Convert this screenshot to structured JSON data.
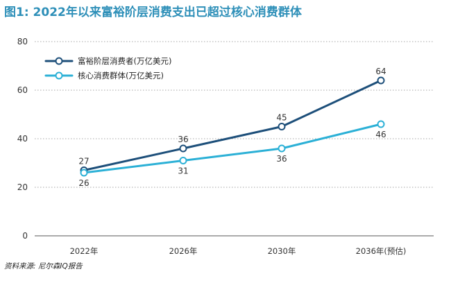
{
  "title": "图1: 2022年以来富裕阶层消费支出已超过核心消费群体",
  "source": "资料来源: 尼尔森IQ报告",
  "chart_data": {
    "type": "line",
    "title": "图1: 2022年以来富裕阶层消费支出已超过核心消费群体",
    "categories": [
      "2022年",
      "2026年",
      "2030年",
      "2036年(预估)"
    ],
    "ylim": [
      0,
      80
    ],
    "yticks": [
      0,
      20,
      40,
      60,
      80
    ],
    "grid": true,
    "legend_position": "top-left",
    "series": [
      {
        "name": "富裕阶层消费者(万亿美元)",
        "values": [
          27,
          36,
          45,
          64
        ],
        "color": "#1d4f7a"
      },
      {
        "name": "核心消费群体(万亿美元)",
        "values": [
          26,
          31,
          36,
          46
        ],
        "color": "#2bb0d6"
      }
    ]
  }
}
